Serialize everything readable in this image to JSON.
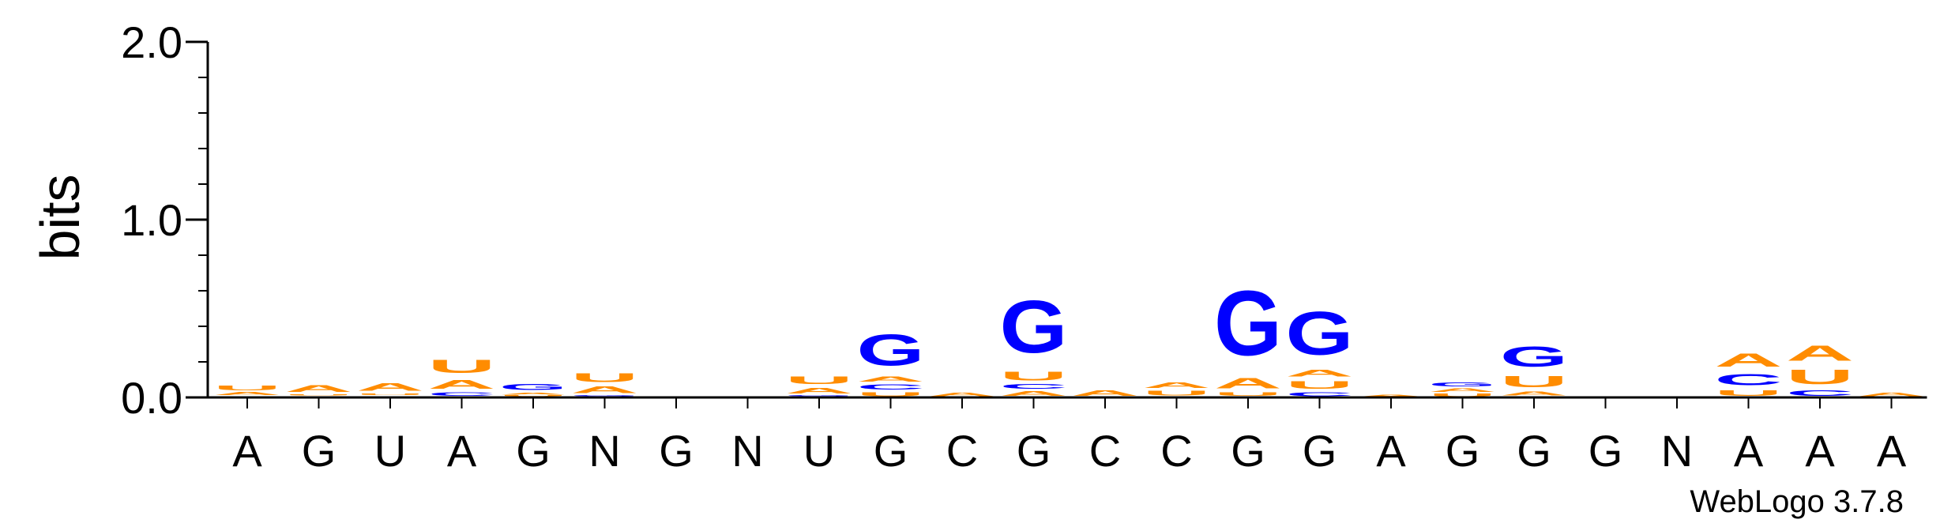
{
  "chart_data": {
    "type": "sequence-logo",
    "ylabel": "bits",
    "ylim": [
      0,
      2.0
    ],
    "yticks": [
      "0.0",
      "1.0",
      "2.0"
    ],
    "categories": [
      "A",
      "G",
      "U",
      "A",
      "G",
      "N",
      "G",
      "N",
      "U",
      "G",
      "C",
      "G",
      "C",
      "C",
      "G",
      "G",
      "A",
      "G",
      "G",
      "G",
      "N",
      "A",
      "A",
      "A"
    ],
    "colors": {
      "A": "#ff8c00",
      "U": "#ff8c00",
      "G": "#0000ff",
      "C": "#0000ff"
    },
    "stacks": [
      [
        [
          "G",
          0.004
        ],
        [
          "C",
          0.004
        ],
        [
          "A",
          0.025
        ],
        [
          "U",
          0.04
        ]
      ],
      [
        [
          "C",
          0.004
        ],
        [
          "G",
          0.006
        ],
        [
          "U",
          0.01
        ],
        [
          "A",
          0.06
        ]
      ],
      [
        [
          "C",
          0.004
        ],
        [
          "G",
          0.006
        ],
        [
          "U",
          0.015
        ],
        [
          "A",
          0.07
        ]
      ],
      [
        [
          "G",
          0.004
        ],
        [
          "C",
          0.03
        ],
        [
          "A",
          0.08
        ],
        [
          "U",
          0.12
        ]
      ],
      [
        [
          "C",
          0.004
        ],
        [
          "U",
          0.008
        ],
        [
          "A",
          0.02
        ],
        [
          "G",
          0.055
        ]
      ],
      [
        [
          "C",
          0.004
        ],
        [
          "G",
          0.008
        ],
        [
          "A",
          0.06
        ],
        [
          "U",
          0.08
        ]
      ],
      [],
      [],
      [
        [
          "C",
          0.004
        ],
        [
          "G",
          0.008
        ],
        [
          "A",
          0.05
        ],
        [
          "U",
          0.07
        ]
      ],
      [
        [
          "U",
          0.035
        ],
        [
          "C",
          0.045
        ],
        [
          "A",
          0.045
        ],
        [
          "G",
          0.28
        ]
      ],
      [
        [
          "A",
          0.03
        ]
      ],
      [
        [
          "A",
          0.04
        ],
        [
          "C",
          0.04
        ],
        [
          "U",
          0.08
        ],
        [
          "G",
          0.47
        ]
      ],
      [
        [
          "A",
          0.05
        ]
      ],
      [
        [
          "C",
          0.004
        ],
        [
          "U",
          0.04
        ],
        [
          "A",
          0.05
        ]
      ],
      [
        [
          "C",
          0.004
        ],
        [
          "U",
          0.03
        ],
        [
          "A",
          0.09
        ],
        [
          "G",
          0.58
        ]
      ],
      [
        [
          "C",
          0.035
        ],
        [
          "U",
          0.07
        ],
        [
          "A",
          0.06
        ],
        [
          "G",
          0.39
        ]
      ],
      [
        [
          "A",
          0.02
        ]
      ],
      [
        [
          "U",
          0.025
        ],
        [
          "A",
          0.03
        ],
        [
          "G",
          0.035
        ]
      ],
      [
        [
          "C",
          0.004
        ],
        [
          "A",
          0.035
        ],
        [
          "U",
          0.1
        ],
        [
          "G",
          0.18
        ]
      ],
      [],
      [],
      [
        [
          "U",
          0.05
        ],
        [
          "C",
          0.1
        ],
        [
          "A",
          0.12
        ]
      ],
      [
        [
          "C",
          0.05
        ],
        [
          "U",
          0.13
        ],
        [
          "A",
          0.14
        ]
      ],
      [
        [
          "A",
          0.03
        ]
      ]
    ],
    "credit": "WebLogo 3.7.8"
  }
}
